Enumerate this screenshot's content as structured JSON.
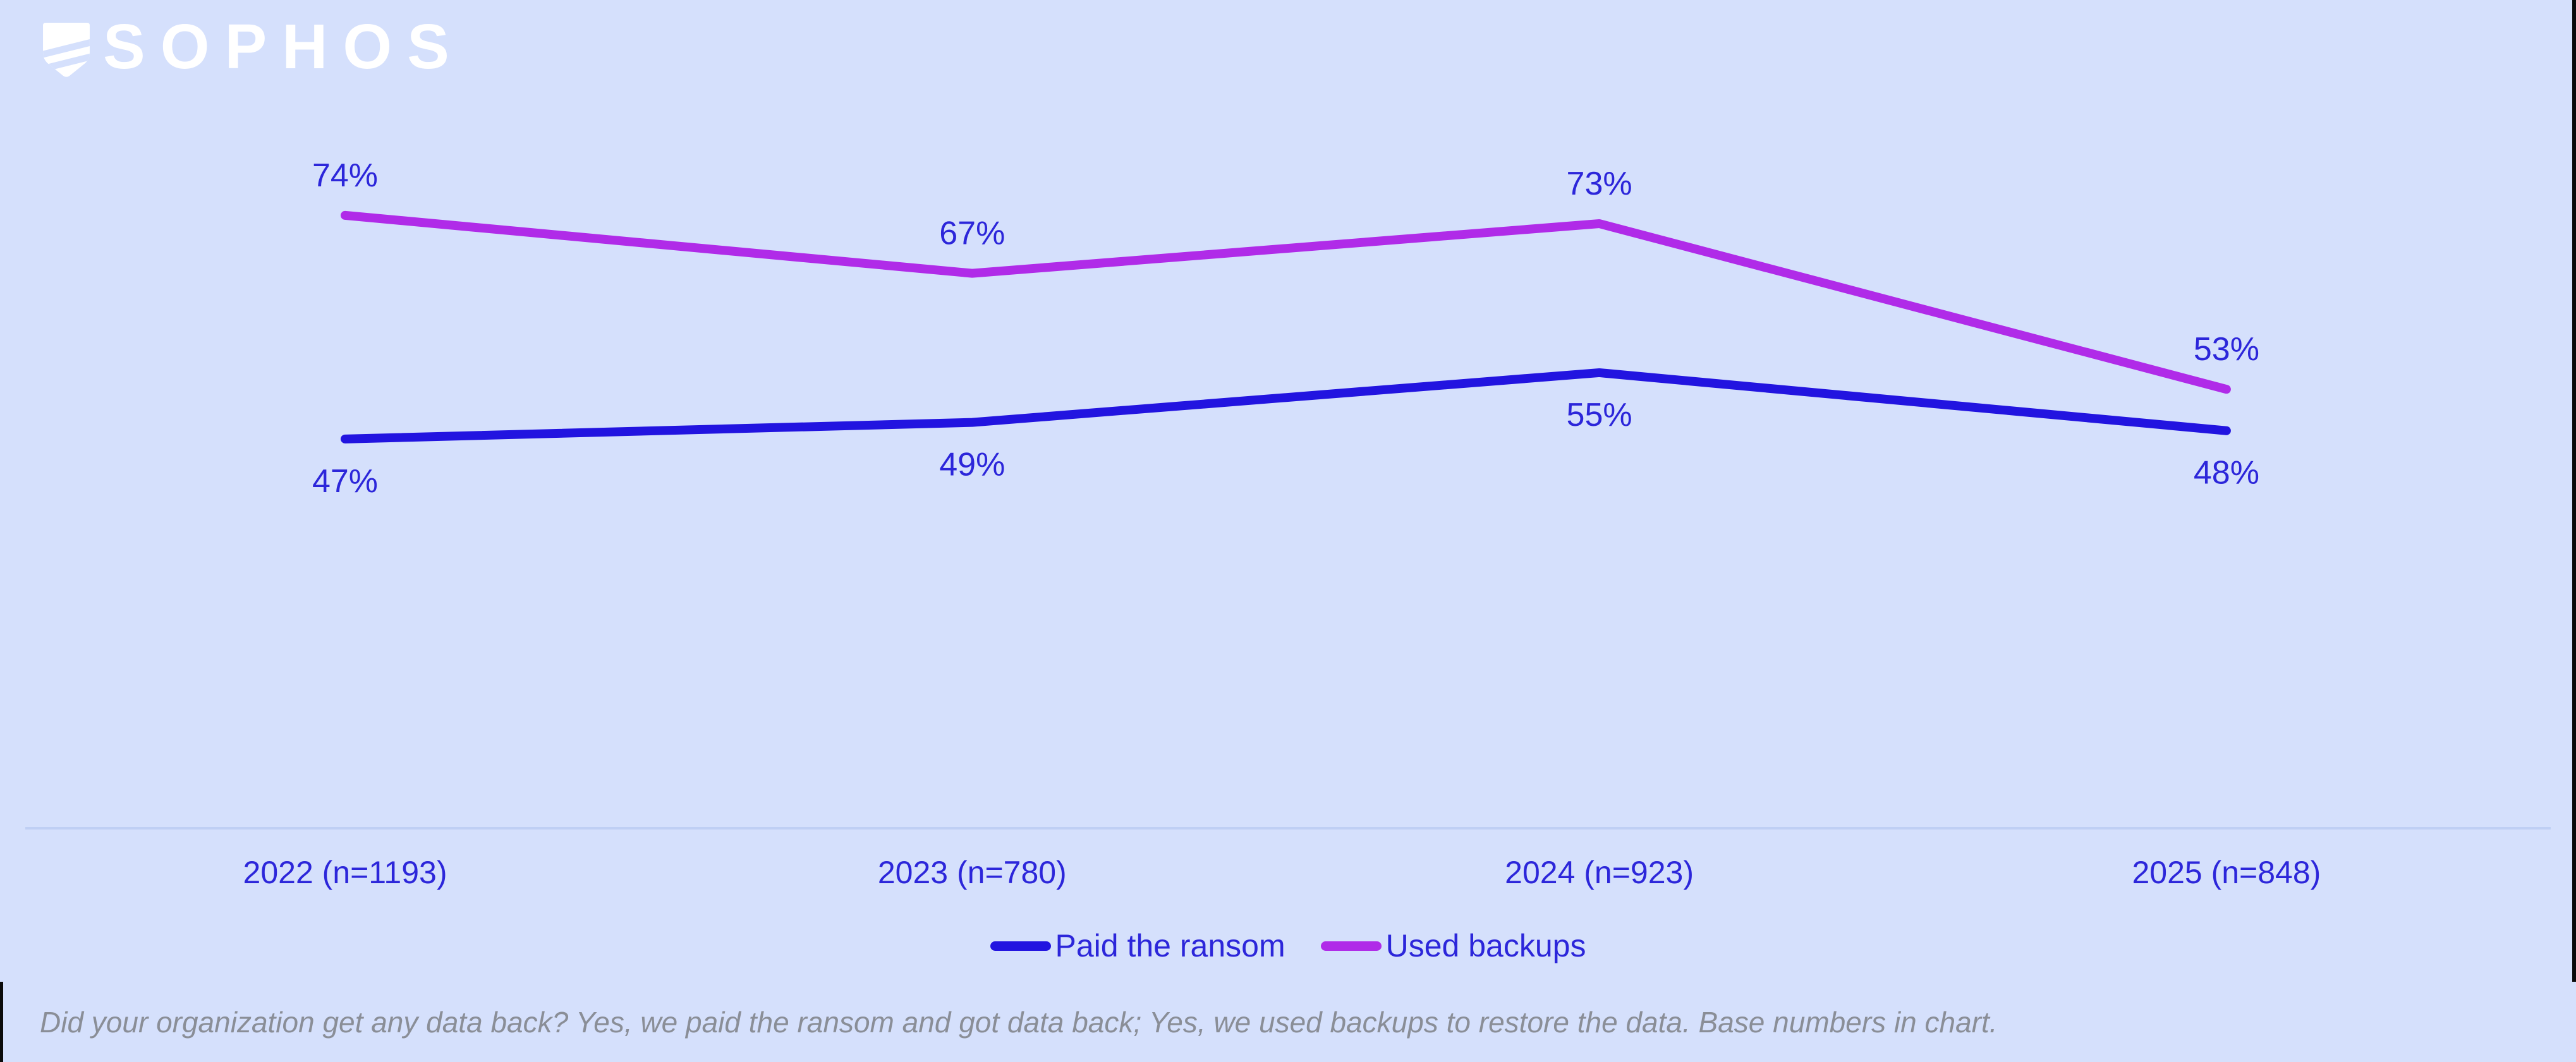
{
  "brand": {
    "logo_text": "SOPHOS"
  },
  "chart_data": {
    "type": "line",
    "categories": [
      "2022 (n=1193)",
      "2023 (n=780)",
      "2024 (n=923)",
      "2025 (n=848)"
    ],
    "series": [
      {
        "name": "Paid the ransom",
        "color": "#2214E0",
        "values": [
          47,
          49,
          55,
          48
        ],
        "label_position": "below"
      },
      {
        "name": "Used backups",
        "color": "#B02BE8",
        "values": [
          74,
          67,
          73,
          53
        ],
        "label_position": "above"
      }
    ],
    "value_suffix": "%",
    "ylim": [
      0,
      100
    ],
    "grid": false,
    "legend_position": "bottom",
    "title": "",
    "xlabel": "",
    "ylabel": ""
  },
  "footer": {
    "note": "Did your organization get any data back? Yes, we paid the ransom and got data back; Yes, we used backups to restore the data. Base numbers in chart."
  },
  "colors": {
    "background": "#D5E0FC",
    "label_text": "#2C26DA",
    "axis_line": "#BFCFF4",
    "footer_text": "#8A8E97",
    "logo": "#FFFFFF"
  }
}
